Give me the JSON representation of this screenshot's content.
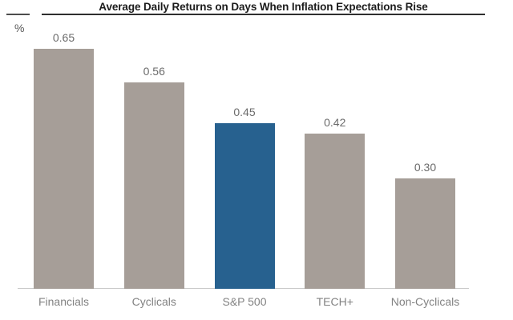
{
  "chart_data": {
    "type": "bar",
    "title": "Average Daily Returns on Days When Inflation Expectations Rise",
    "unit_label": "%",
    "categories": [
      "Financials",
      "Cyclicals",
      "S&P 500",
      "TECH+",
      "Non-Cyclicals"
    ],
    "values": [
      0.65,
      0.56,
      0.45,
      0.42,
      0.3
    ],
    "value_labels": [
      "0.65",
      "0.56",
      "0.45",
      "0.42",
      "0.30"
    ],
    "highlight_category": "S&P 500",
    "colors": {
      "bar_default": "#a69e98",
      "bar_highlight": "#27618f",
      "title_text": "#1c1c1c",
      "title_underline": "#2e2e2e",
      "value_label_text": "#6b6b6b",
      "category_label_text": "#828282",
      "axis_line": "#c9c9c9",
      "background": "#ffffff"
    },
    "ylim": [
      0,
      0.72
    ],
    "grid": false,
    "legend": false,
    "orientation": "vertical",
    "value_labels_position": "above-bars"
  }
}
